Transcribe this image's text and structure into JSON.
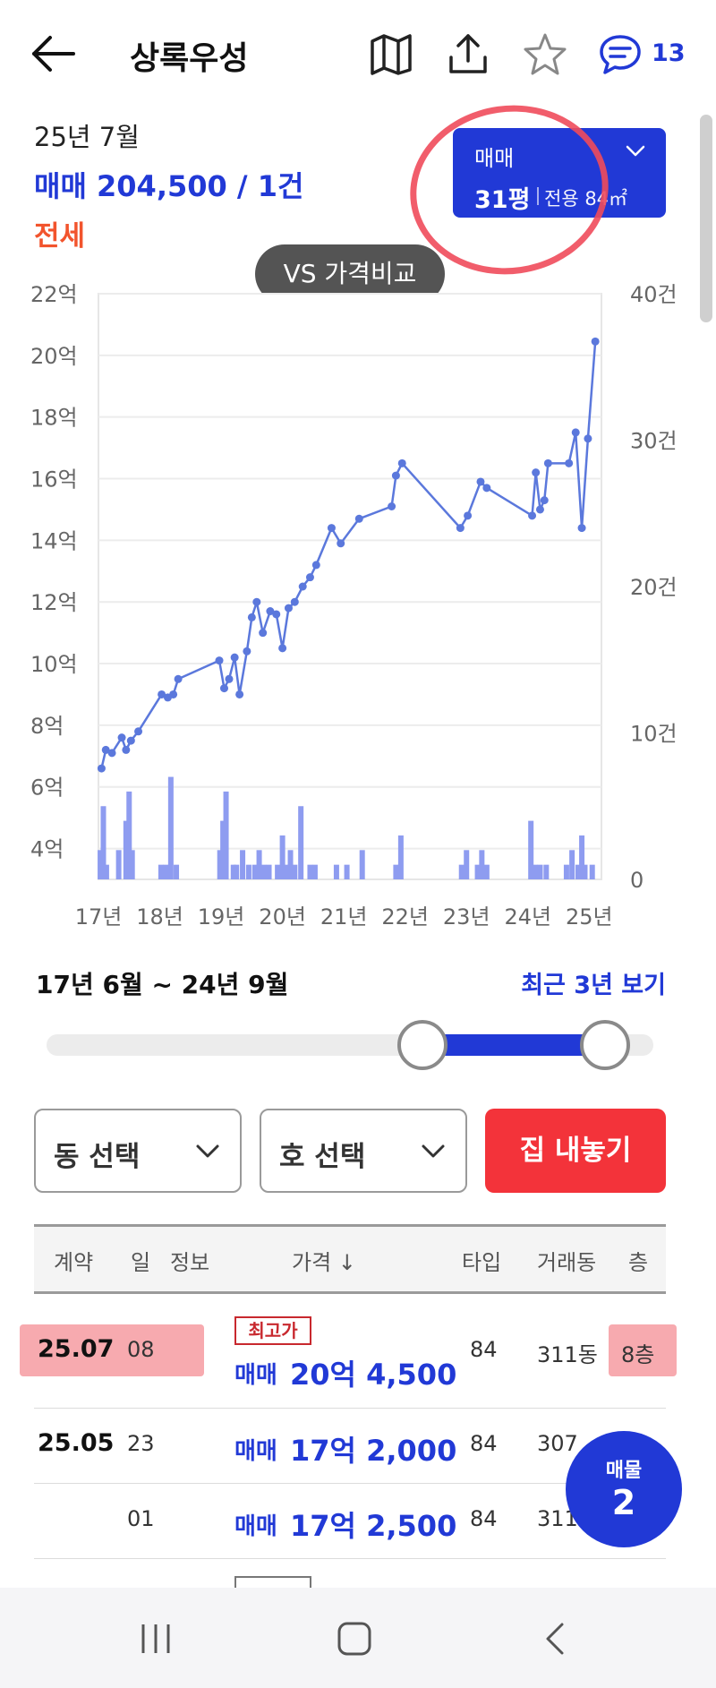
{
  "header": {
    "title": "상록우성",
    "comment_count": "13",
    "icons": [
      "back-arrow-icon",
      "map-icon",
      "share-icon",
      "star-icon",
      "comment-icon"
    ]
  },
  "summary": {
    "period": "25년 7월",
    "trade": "매매 204,500 / 1건",
    "jeonse": "전세"
  },
  "type_selector": {
    "deal_type": "매매",
    "pyeong": "31평",
    "area": "전용 84㎡"
  },
  "vs_button": "VS 가격비교",
  "colors": {
    "accent_blue": "#2139d6",
    "jeonse_orange": "#f2542d",
    "sell_red": "#f3333a",
    "line": "#5b78dc",
    "bar": "#8e9cf0"
  },
  "chart_data": {
    "type": "line",
    "left_axis_ticks": [
      "22억",
      "20억",
      "18억",
      "16억",
      "14억",
      "12억",
      "10억",
      "8억",
      "6억",
      "4억"
    ],
    "left_axis_values": [
      22,
      20,
      18,
      16,
      14,
      12,
      10,
      8,
      6,
      4
    ],
    "ylim": [
      3,
      22
    ],
    "right_axis_ticks": [
      "40건",
      "30건",
      "20건",
      "10건",
      "0"
    ],
    "right_axis_values": [
      40,
      30,
      20,
      10,
      0
    ],
    "y2lim": [
      0,
      40
    ],
    "x_ticks": [
      "17년",
      "18년",
      "19년",
      "20년",
      "21년",
      "22년",
      "23년",
      "24년",
      "25년"
    ],
    "x_tick_values": [
      2017.0,
      2018.0,
      2019.0,
      2020.0,
      2021.0,
      2022.0,
      2023.0,
      2024.0,
      2025.0
    ],
    "xlim": [
      2017.0,
      2025.2
    ],
    "series": [
      {
        "kind": "price",
        "x": [
          2017.05,
          2017.12,
          2017.22,
          2017.38,
          2017.45,
          2017.53,
          2017.65,
          2018.03,
          2018.13,
          2018.22,
          2018.3,
          2018.97,
          2019.05,
          2019.13,
          2019.22,
          2019.3,
          2019.42,
          2019.5,
          2019.58,
          2019.68,
          2019.8,
          2019.9,
          2020.0,
          2020.1,
          2020.2,
          2020.33,
          2020.45,
          2020.55,
          2020.8,
          2020.95,
          2021.25,
          2021.78,
          2021.85,
          2021.95,
          2022.9,
          2023.02,
          2023.23,
          2023.33,
          2024.07,
          2024.13,
          2024.2,
          2024.27,
          2024.33,
          2024.67,
          2024.78,
          2024.88,
          2024.98
        ],
        "values": [
          6.6,
          7.2,
          7.1,
          7.6,
          7.2,
          7.5,
          7.8,
          9.0,
          8.9,
          9.0,
          9.5,
          10.1,
          9.2,
          9.5,
          10.2,
          9.0,
          10.4,
          11.5,
          12.0,
          11.0,
          11.7,
          11.6,
          10.5,
          11.8,
          12.0,
          12.5,
          12.8,
          13.2,
          14.4,
          13.9,
          14.7,
          15.1,
          16.1,
          16.5,
          14.4,
          14.8,
          15.9,
          15.7,
          14.8,
          16.2,
          15.0,
          15.3,
          16.5,
          16.5,
          17.5,
          14.4,
          17.3
        ]
      },
      {
        "kind": "volume",
        "x": [
          2017.03,
          2017.08,
          2017.13,
          2017.33,
          2017.45,
          2017.5,
          2017.55,
          2018.02,
          2018.1,
          2018.18,
          2018.27,
          2018.98,
          2019.03,
          2019.08,
          2019.2,
          2019.25,
          2019.35,
          2019.45,
          2019.55,
          2019.62,
          2019.7,
          2019.78,
          2019.92,
          2020.0,
          2020.05,
          2020.13,
          2020.2,
          2020.3,
          2020.45,
          2020.53,
          2020.88,
          2021.05,
          2021.3,
          2021.85,
          2021.93,
          2022.92,
          2023.0,
          2023.18,
          2023.25,
          2023.33,
          2024.05,
          2024.12,
          2024.2,
          2024.3,
          2024.63,
          2024.72,
          2024.82,
          2024.88,
          2024.93,
          2025.05
        ],
        "values": [
          2,
          5,
          1,
          2,
          4,
          6,
          2,
          1,
          1,
          7,
          1,
          2,
          4,
          6,
          1,
          1,
          2,
          1,
          1,
          2,
          1,
          1,
          1,
          3,
          1,
          2,
          1,
          5,
          1,
          1,
          1,
          1,
          2,
          1,
          3,
          1,
          2,
          1,
          2,
          1,
          4,
          1,
          1,
          1,
          1,
          2,
          1,
          3,
          1,
          1
        ]
      }
    ],
    "latest_point": {
      "x": 2025.1,
      "value": 20.45
    }
  },
  "range": {
    "label": "17년 6월 ~ 24년 9월",
    "recent_link": "최근 3년 보기",
    "handle_left_fraction": 0.62,
    "handle_right_fraction": 0.92
  },
  "filters": {
    "dong": "동 선택",
    "ho": "호 선택",
    "sell_button": "집 내놓기"
  },
  "table": {
    "headers": {
      "contract": "계약",
      "day": "일",
      "info": "정보",
      "price": "가격 ↓",
      "type": "타입",
      "dong": "거래동",
      "floor": "층"
    },
    "rows": [
      {
        "date": "25.07",
        "day": "08",
        "badge": "최고가",
        "kind": "매매",
        "price": "20억 4,500",
        "type": "84",
        "dong": "311동",
        "floor": "8층"
      },
      {
        "date": "25.05",
        "day": "23",
        "badge": "",
        "kind": "매매",
        "price": "17억 2,000",
        "type": "84",
        "dong": "307",
        "floor": ""
      },
      {
        "date": "",
        "day": "01",
        "badge": "",
        "kind": "매매",
        "price": "17억 2,500",
        "type": "84",
        "dong": "311",
        "floor": ""
      }
    ]
  },
  "listing_fab": {
    "label": "매물",
    "count": "2"
  },
  "nav": {
    "icons": [
      "recent-apps-icon",
      "home-icon",
      "back-icon"
    ]
  }
}
